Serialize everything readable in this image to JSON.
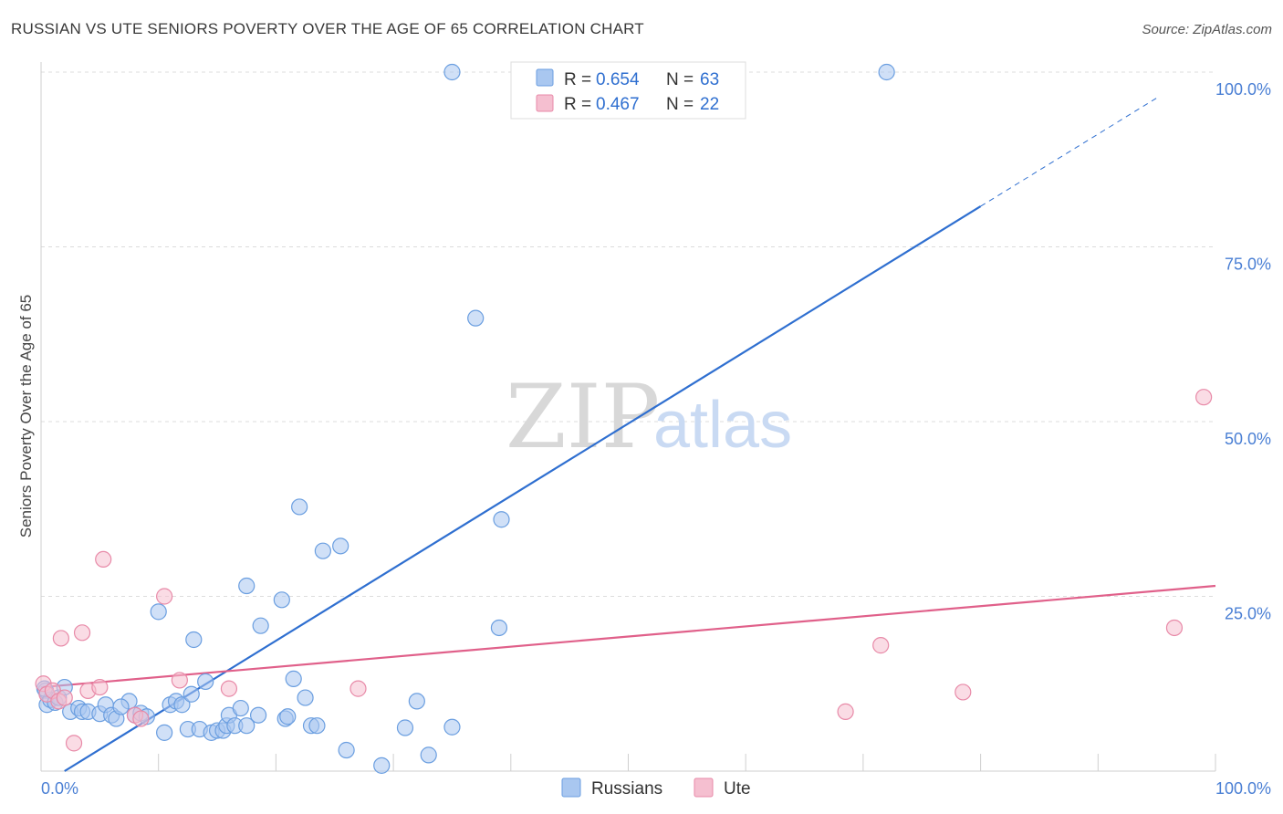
{
  "header": {
    "title": "RUSSIAN VS UTE SENIORS POVERTY OVER THE AGE OF 65 CORRELATION CHART",
    "source": "Source: ZipAtlas.com"
  },
  "watermark": {
    "zip": "ZIP",
    "atlas": "atlas"
  },
  "legend_top": {
    "rows": [
      {
        "r_label": "R =",
        "r_value": "0.654",
        "n_label": "N =",
        "n_value": "63",
        "color": "#a9c7f0",
        "stroke": "#6a9ee0"
      },
      {
        "r_label": "R =",
        "r_value": "0.467",
        "n_label": "N =",
        "n_value": "22",
        "color": "#f5bfd0",
        "stroke": "#e88aa8"
      }
    ]
  },
  "legend_bottom": {
    "items": [
      {
        "label": "Russians",
        "color": "#a9c7f0",
        "stroke": "#6a9ee0"
      },
      {
        "label": "Ute",
        "color": "#f5bfd0",
        "stroke": "#e88aa8"
      }
    ]
  },
  "chart_data": {
    "type": "scatter",
    "title": "RUSSIAN VS UTE SENIORS POVERTY OVER THE AGE OF 65 CORRELATION CHART",
    "xlabel": "",
    "ylabel": "Seniors Poverty Over the Age of 65",
    "xlim": [
      0,
      100
    ],
    "ylim": [
      0,
      100
    ],
    "x_tick_labels": [
      {
        "value": 0,
        "label": "0.0%"
      },
      {
        "value": 100,
        "label": "100.0%"
      }
    ],
    "y_tick_labels": [
      {
        "value": 25,
        "label": "25.0%"
      },
      {
        "value": 50,
        "label": "50.0%"
      },
      {
        "value": 75,
        "label": "75.0%"
      },
      {
        "value": 100,
        "label": "100.0%"
      }
    ],
    "grid": true,
    "legend_placement": "top-center",
    "series": [
      {
        "name": "Russians",
        "color": "#6a9ee0",
        "fill": "#a9c7f0",
        "r": 0.654,
        "n": 63,
        "trend": {
          "x1": 2,
          "y1": 0,
          "x2": 80,
          "y2": 80.8,
          "dashed_to_x": 95,
          "dashed_to_y": 96.3
        },
        "points": [
          [
            0.4,
            11.5
          ],
          [
            0.5,
            9.5
          ],
          [
            0.8,
            10.2
          ],
          [
            1.2,
            9.8
          ],
          [
            1.5,
            10.5
          ],
          [
            2,
            12
          ],
          [
            2.5,
            8.5
          ],
          [
            3.2,
            9
          ],
          [
            3.5,
            8.5
          ],
          [
            4,
            8.5
          ],
          [
            5,
            8.2
          ],
          [
            5.5,
            9.5
          ],
          [
            6,
            8
          ],
          [
            6.4,
            7.5
          ],
          [
            7.5,
            10
          ],
          [
            8,
            8
          ],
          [
            8.5,
            8.3
          ],
          [
            9,
            7.8
          ],
          [
            10,
            22.8
          ],
          [
            10.5,
            5.5
          ],
          [
            11,
            9.5
          ],
          [
            11.5,
            10
          ],
          [
            12,
            9.5
          ],
          [
            12.5,
            6
          ],
          [
            12.8,
            11
          ],
          [
            13,
            18.8
          ],
          [
            13.5,
            6
          ],
          [
            14,
            12.8
          ],
          [
            14.5,
            5.5
          ],
          [
            15,
            5.8
          ],
          [
            15.5,
            5.8
          ],
          [
            15.8,
            6.5
          ],
          [
            16,
            8
          ],
          [
            16.5,
            6.5
          ],
          [
            17,
            9
          ],
          [
            17.5,
            6.5
          ],
          [
            17.5,
            26.5
          ],
          [
            18.5,
            8
          ],
          [
            18.7,
            20.8
          ],
          [
            20.5,
            24.5
          ],
          [
            20.8,
            7.5
          ],
          [
            21,
            7.8
          ],
          [
            21.5,
            13.2
          ],
          [
            22,
            37.8
          ],
          [
            22.5,
            10.5
          ],
          [
            23,
            6.5
          ],
          [
            23.5,
            6.5
          ],
          [
            24,
            31.5
          ],
          [
            25.5,
            32.2
          ],
          [
            26,
            3
          ],
          [
            29,
            0.8
          ],
          [
            31,
            6.2
          ],
          [
            32,
            10
          ],
          [
            33,
            2.3
          ],
          [
            35,
            6.3
          ],
          [
            35,
            100
          ],
          [
            37,
            64.8
          ],
          [
            39,
            20.5
          ],
          [
            39.2,
            36
          ],
          [
            47,
            100
          ],
          [
            72,
            100
          ],
          [
            0.3,
            11.8
          ],
          [
            6.8,
            9.2
          ]
        ]
      },
      {
        "name": "Ute",
        "color": "#e88aa8",
        "fill": "#f5bfd0",
        "r": 0.467,
        "n": 22,
        "trend": {
          "x1": 0,
          "y1": 12,
          "x2": 100,
          "y2": 26.5
        },
        "points": [
          [
            0.2,
            12.5
          ],
          [
            0.5,
            11
          ],
          [
            1,
            11.5
          ],
          [
            1.5,
            10
          ],
          [
            1.7,
            19
          ],
          [
            2,
            10.5
          ],
          [
            2.8,
            4
          ],
          [
            3.5,
            19.8
          ],
          [
            4,
            11.5
          ],
          [
            5,
            12
          ],
          [
            5.3,
            30.3
          ],
          [
            8,
            8
          ],
          [
            8.5,
            7.5
          ],
          [
            10.5,
            25
          ],
          [
            11.8,
            13
          ],
          [
            16,
            11.8
          ],
          [
            27,
            11.8
          ],
          [
            68.5,
            8.5
          ],
          [
            71.5,
            18
          ],
          [
            78.5,
            11.3
          ],
          [
            96.5,
            20.5
          ],
          [
            99,
            53.5
          ]
        ]
      }
    ]
  }
}
